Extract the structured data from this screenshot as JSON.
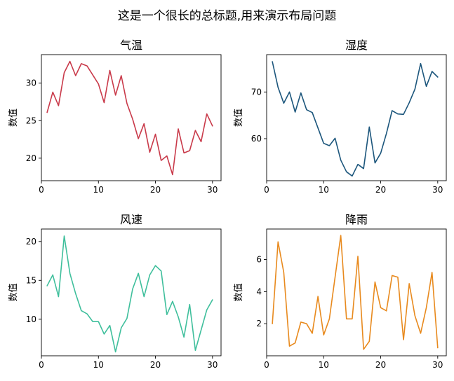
{
  "figure": {
    "suptitle": "这是一个很长的总标题,用来演示布局问题"
  },
  "chart_data": [
    {
      "type": "line",
      "title": "气温",
      "xlabel": "",
      "ylabel": "数值",
      "xlim": [
        0,
        31.5
      ],
      "ylim": [
        17.0,
        33.8
      ],
      "xticks": [
        0,
        10,
        20,
        30
      ],
      "yticks": [
        20,
        25,
        30
      ],
      "grid": false,
      "color": "#c93a4a",
      "x": [
        1,
        2,
        3,
        4,
        5,
        6,
        7,
        8,
        9,
        10,
        11,
        12,
        13,
        14,
        15,
        16,
        17,
        18,
        19,
        20,
        21,
        22,
        23,
        24,
        25,
        26,
        27,
        28,
        29,
        30
      ],
      "values": [
        26.1,
        28.8,
        27.0,
        31.4,
        32.9,
        31.0,
        32.6,
        32.3,
        31.1,
        29.9,
        27.4,
        31.7,
        28.4,
        31.0,
        27.3,
        25.2,
        22.6,
        24.6,
        20.8,
        23.2,
        19.7,
        20.3,
        17.8,
        23.9,
        20.7,
        21.0,
        23.7,
        22.2,
        25.9,
        24.3
      ]
    },
    {
      "type": "line",
      "title": "湿度",
      "xlabel": "",
      "ylabel": "数值",
      "xlim": [
        0,
        31.5
      ],
      "ylim": [
        51.0,
        78.0
      ],
      "xticks": [
        0,
        10,
        20,
        30
      ],
      "yticks": [
        60,
        70
      ],
      "grid": false,
      "color": "#1c567c",
      "x": [
        1,
        2,
        3,
        4,
        5,
        6,
        7,
        8,
        9,
        10,
        11,
        12,
        13,
        14,
        15,
        16,
        17,
        18,
        19,
        20,
        21,
        22,
        23,
        24,
        25,
        26,
        27,
        28,
        29,
        30
      ],
      "values": [
        76.5,
        71.0,
        67.6,
        70.0,
        65.7,
        69.8,
        66.2,
        65.6,
        62.3,
        59.0,
        58.5,
        60.1,
        55.4,
        52.9,
        52.0,
        54.5,
        53.6,
        62.5,
        54.8,
        56.9,
        61.1,
        66.0,
        65.3,
        65.2,
        67.7,
        70.6,
        76.1,
        71.2,
        74.4,
        73.2
      ]
    },
    {
      "type": "line",
      "title": "风速",
      "xlabel": "",
      "ylabel": "数值",
      "xlim": [
        0,
        31.5
      ],
      "ylim": [
        5.3,
        21.6
      ],
      "xticks": [
        0,
        10,
        20,
        30
      ],
      "yticks": [
        10,
        15,
        20
      ],
      "grid": false,
      "color": "#3fbf9c",
      "x": [
        1,
        2,
        3,
        4,
        5,
        6,
        7,
        8,
        9,
        10,
        11,
        12,
        13,
        14,
        15,
        16,
        17,
        18,
        19,
        20,
        21,
        22,
        23,
        24,
        25,
        26,
        27,
        28,
        29,
        30
      ],
      "values": [
        14.3,
        15.7,
        12.9,
        20.7,
        15.9,
        13.3,
        11.1,
        10.7,
        9.7,
        9.7,
        8.1,
        9.2,
        5.8,
        8.9,
        10.1,
        13.9,
        15.9,
        12.9,
        15.7,
        16.9,
        16.2,
        10.6,
        12.3,
        10.3,
        7.7,
        11.9,
        6.0,
        8.6,
        11.2,
        12.5
      ]
    },
    {
      "type": "line",
      "title": "降雨",
      "xlabel": "",
      "ylabel": "数值",
      "xlim": [
        0,
        31.5
      ],
      "ylim": [
        0.0,
        7.9
      ],
      "xticks": [
        0,
        10,
        20,
        30
      ],
      "yticks": [
        2,
        4,
        6
      ],
      "grid": false,
      "color": "#e88a1e",
      "x": [
        1,
        2,
        3,
        4,
        5,
        6,
        7,
        8,
        9,
        10,
        11,
        12,
        13,
        14,
        15,
        16,
        17,
        18,
        19,
        20,
        21,
        22,
        23,
        24,
        25,
        26,
        27,
        28,
        29,
        30
      ],
      "values": [
        2.0,
        7.1,
        5.2,
        0.6,
        0.8,
        2.1,
        2.0,
        1.4,
        3.7,
        1.3,
        2.3,
        4.9,
        7.5,
        2.3,
        2.3,
        6.2,
        0.4,
        0.9,
        4.6,
        3.0,
        2.8,
        5.0,
        4.9,
        1.0,
        4.5,
        2.5,
        1.4,
        3.0,
        5.2,
        0.5
      ]
    }
  ]
}
